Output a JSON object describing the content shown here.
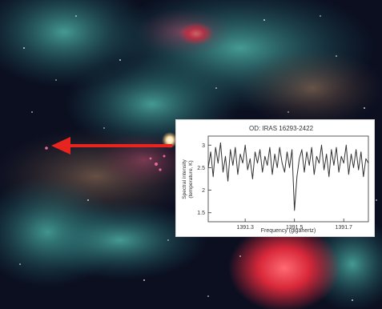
{
  "colors": {
    "arrow": "#e8241e",
    "nebula_red": "#e8323a",
    "nebula_teal": "#2f8f86",
    "space": "#0b0f20",
    "trace": "#333333"
  },
  "chart_data": {
    "type": "line",
    "title": "OD: IRAS 16293-2422",
    "xlabel": "Frequency (gigahertz)",
    "ylabel_line1": "Spectral intensity",
    "ylabel_line2": "(temperature, K)",
    "xlim": [
      1391.15,
      1391.8
    ],
    "ylim": [
      1.3,
      3.2
    ],
    "x_ticks": [
      "1391.3",
      "1391.5",
      "1391.7"
    ],
    "x_tick_values": [
      1391.3,
      1391.5,
      1391.7
    ],
    "y_ticks": [
      "1.5",
      "2",
      "2.5",
      "3"
    ],
    "y_tick_values": [
      1.5,
      2.0,
      2.5,
      3.0
    ],
    "grid": false,
    "series": [
      {
        "x": [
          1391.15,
          1391.16,
          1391.17,
          1391.18,
          1391.19,
          1391.2,
          1391.21,
          1391.22,
          1391.23,
          1391.24,
          1391.25,
          1391.26,
          1391.27,
          1391.28,
          1391.29,
          1391.3,
          1391.31,
          1391.32,
          1391.33,
          1391.34,
          1391.35,
          1391.36,
          1391.37,
          1391.38,
          1391.39,
          1391.4,
          1391.41,
          1391.42,
          1391.43,
          1391.44,
          1391.45,
          1391.46,
          1391.47,
          1391.48,
          1391.49,
          1391.5,
          1391.51,
          1391.52,
          1391.53,
          1391.54,
          1391.55,
          1391.56,
          1391.57,
          1391.58,
          1391.59,
          1391.6,
          1391.61,
          1391.62,
          1391.63,
          1391.64,
          1391.65,
          1391.66,
          1391.67,
          1391.68,
          1391.69,
          1391.7,
          1391.71,
          1391.72,
          1391.73,
          1391.74,
          1391.75,
          1391.76,
          1391.77,
          1391.78,
          1391.79,
          1391.8
        ],
        "y": [
          2.5,
          2.85,
          2.3,
          2.95,
          2.6,
          3.05,
          2.4,
          2.75,
          2.2,
          2.9,
          2.55,
          2.95,
          2.35,
          2.8,
          2.6,
          3.0,
          2.45,
          2.7,
          2.25,
          2.85,
          2.6,
          2.9,
          2.4,
          2.75,
          2.55,
          2.95,
          2.35,
          2.8,
          2.5,
          2.95,
          2.6,
          2.4,
          2.85,
          2.5,
          2.9,
          1.55,
          2.3,
          2.7,
          2.9,
          2.4,
          2.85,
          2.55,
          2.95,
          2.35,
          2.75,
          2.6,
          3.0,
          2.45,
          2.8,
          2.3,
          2.9,
          2.55,
          2.95,
          2.4,
          2.75,
          2.6,
          3.0,
          2.35,
          2.8,
          2.5,
          2.9,
          2.45,
          2.85,
          2.3,
          2.7,
          2.6
        ]
      }
    ]
  }
}
